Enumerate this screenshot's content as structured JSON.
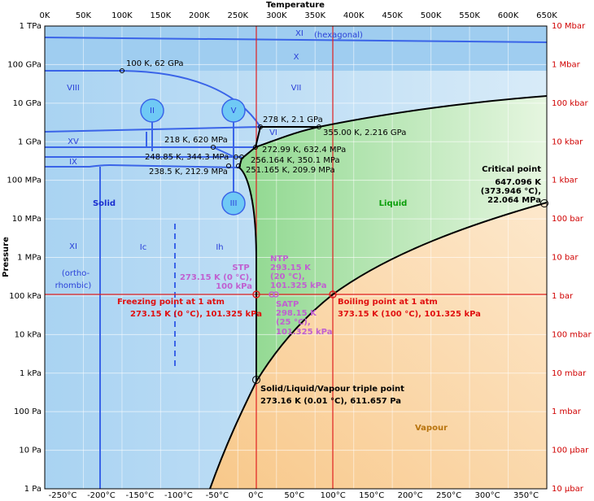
{
  "axes": {
    "x_title": "Temperature",
    "y_title": "Pressure",
    "kelvin_ticks": [
      "0K",
      "50K",
      "100K",
      "150K",
      "200K",
      "250K",
      "300K",
      "350K",
      "400K",
      "450K",
      "500K",
      "550K",
      "600K",
      "650K"
    ],
    "celsius_ticks": [
      "-250°C",
      "-200°C",
      "-150°C",
      "-100°C",
      "-50°C",
      "0°C",
      "50°C",
      "100°C",
      "150°C",
      "200°C",
      "250°C",
      "300°C",
      "350°C"
    ],
    "pressure_ticks": [
      "1 TPa",
      "100 GPa",
      "10 GPa",
      "1 GPa",
      "100 MPa",
      "10 MPa",
      "1 MPa",
      "100 kPa",
      "10 kPa",
      "1 kPa",
      "100 Pa",
      "10 Pa",
      "1 Pa"
    ],
    "bar_ticks": [
      "10 Mbar",
      "1 Mbar",
      "100 kbar",
      "10 kbar",
      "1 kbar",
      "100 bar",
      "10 bar",
      "1 bar",
      "100 mbar",
      "10 mbar",
      "1 mbar",
      "100 µbar",
      "10 µbar"
    ]
  },
  "phases": [
    "XI",
    "(hexagonal)",
    "X",
    "VIII",
    "VII",
    "II",
    "V",
    "VI",
    "XV",
    "IX",
    "III",
    "Solid",
    "Liquid",
    "XI",
    "Ic",
    "Ih",
    "(ortho-",
    "rhombic)",
    "Vapour"
  ],
  "points": [
    "100 K, 62 GPa",
    "278 K, 2.1 GPa",
    "218 K, 620 MPa",
    "355.00 K, 2.216 GPa",
    "272.99 K, 632.4 MPa",
    "248.85 K, 344.3 MPa",
    "256.164 K, 350.1 MPa",
    "251.165 K, 209.9 MPa",
    "238.5 K, 212.9 MPa"
  ],
  "critical_point": {
    "title": "Critical point",
    "lines": [
      "647.096 K",
      "(373.946 °C),",
      "22.064 MPa"
    ]
  },
  "stp": {
    "title": "STP",
    "lines": [
      "273.15 K (0 °C),",
      "100 kPa"
    ]
  },
  "ntp": {
    "title": "NTP",
    "lines": [
      "293.15 K",
      "(20 °C),",
      "101.325 kPa"
    ]
  },
  "satp": {
    "title": "SATP",
    "lines": [
      "298.15 K",
      "(25 °C),",
      "101.325 kPa"
    ]
  },
  "freezing_point": {
    "title": "Freezing point at 1 atm",
    "lines": [
      "273.15 K (0 °C), 101.325 kPa"
    ]
  },
  "boiling_point": {
    "title": "Boiling point at 1 atm",
    "lines": [
      "373.15 K (100 °C), 101.325 kPa"
    ]
  },
  "triple_point": {
    "title": "Solid/Liquid/Vapour triple point",
    "lines": [
      "273.16 K (0.01 °C), 611.657 Pa"
    ]
  }
}
